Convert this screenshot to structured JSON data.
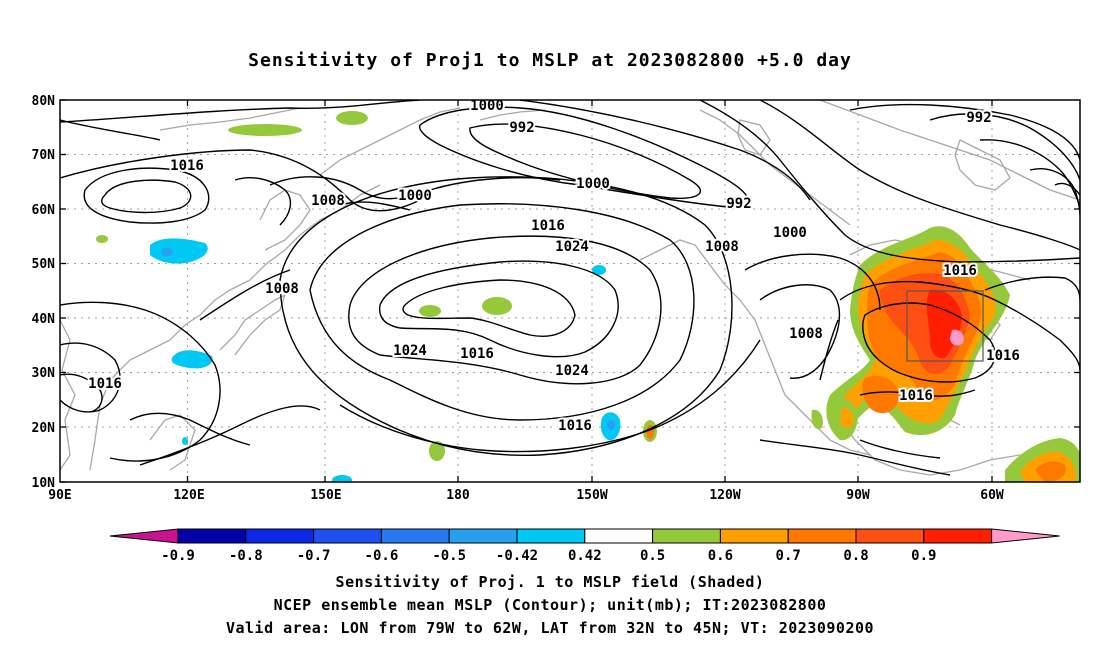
{
  "title": "Sensitivity of Proj1 to MSLP at 2023082800 +5.0 day",
  "lat_labels": [
    "80N",
    "70N",
    "60N",
    "50N",
    "40N",
    "30N",
    "20N",
    "10N"
  ],
  "lon_labels": [
    "90E",
    "120E",
    "150E",
    "180",
    "150W",
    "120W",
    "90W",
    "60W"
  ],
  "contour_labels": [
    "1000",
    "992",
    "1016",
    "1008",
    "1000",
    "1000",
    "992",
    "992",
    "1000",
    "1016",
    "1024",
    "1008",
    "1008",
    "1016",
    "1024",
    "1016",
    "1008",
    "1016",
    "1024",
    "1016",
    "1016",
    "1016"
  ],
  "colorbar": {
    "labels": [
      "-0.9",
      "-0.8",
      "-0.7",
      "-0.6",
      "-0.5",
      "-0.42",
      "0.42",
      "0.5",
      "0.6",
      "0.7",
      "0.8",
      "0.9"
    ],
    "colors": [
      "#0000a8",
      "#0a28e6",
      "#1e50f0",
      "#2878f0",
      "#28a0f0",
      "#00c8f5",
      "#ffffff",
      "#96c83c",
      "#ffa000",
      "#ff7800",
      "#ff5014",
      "#ff1e00"
    ],
    "low_color": "#c8148c",
    "high_color": "#ff9bc8"
  },
  "caption": {
    "line1": "Sensitivity of Proj. 1 to MSLP field (Shaded)",
    "line2": "NCEP ensemble mean MSLP (Contour); unit(mb); IT:2023082800",
    "line3": "Valid area: LON from 79W to 62W, LAT from 32N to 45N; VT: 2023090200"
  }
}
